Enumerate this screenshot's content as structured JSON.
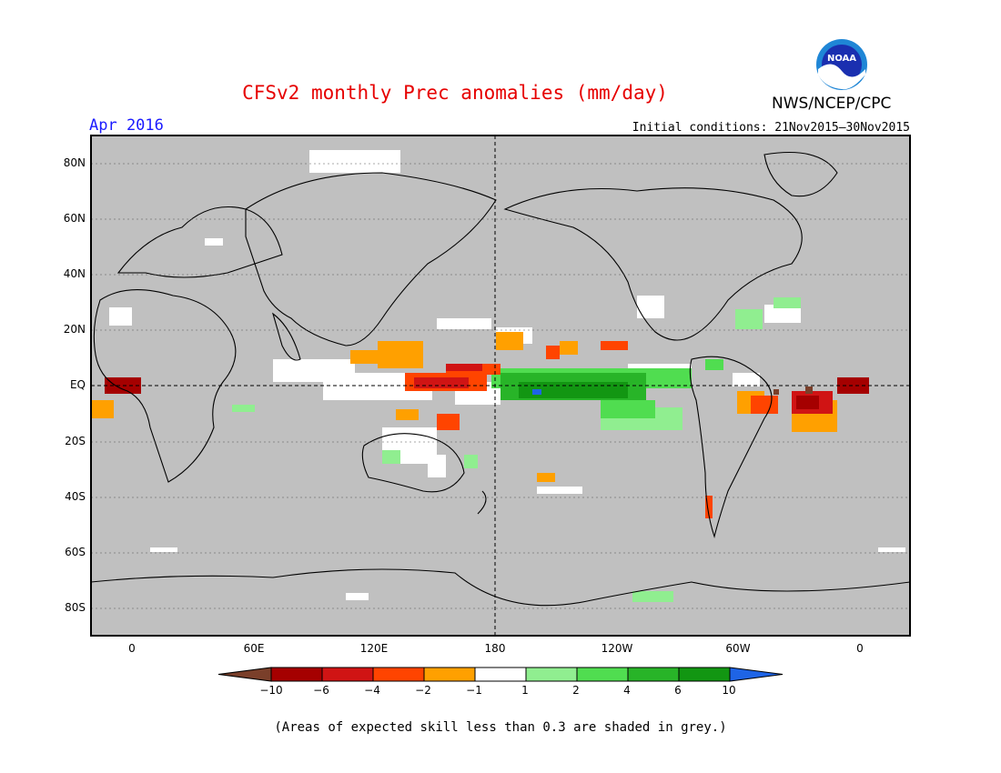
{
  "header": {
    "title": "CFSv2 monthly Prec anomalies (mm/day)",
    "agency": "NWS/NCEP/CPC",
    "month": "Apr 2016",
    "initial_conditions": "Initial conditions: 21Nov2015–30Nov2015",
    "logo_text": "NOAA"
  },
  "map": {
    "lat_labels": [
      "80N",
      "60N",
      "40N",
      "20N",
      "EQ",
      "20S",
      "40S",
      "60S",
      "80S"
    ],
    "lon_labels": [
      "0",
      "60E",
      "120E",
      "180",
      "120W",
      "60W",
      "0"
    ],
    "background_color": "#c0c0c0"
  },
  "colorbar": {
    "labels": [
      "−10",
      "−6",
      "−4",
      "−2",
      "−1",
      "1",
      "2",
      "4",
      "6",
      "10"
    ],
    "colors": [
      "#7a3f2a",
      "#a50000",
      "#d01414",
      "#ff4400",
      "#ffa000",
      "#ffffff",
      "#90ee90",
      "#50dd50",
      "#28b428",
      "#129612",
      "#1e64e6"
    ]
  },
  "footnote": "(Areas of expected skill less than 0.3 are shaded in grey.)"
}
